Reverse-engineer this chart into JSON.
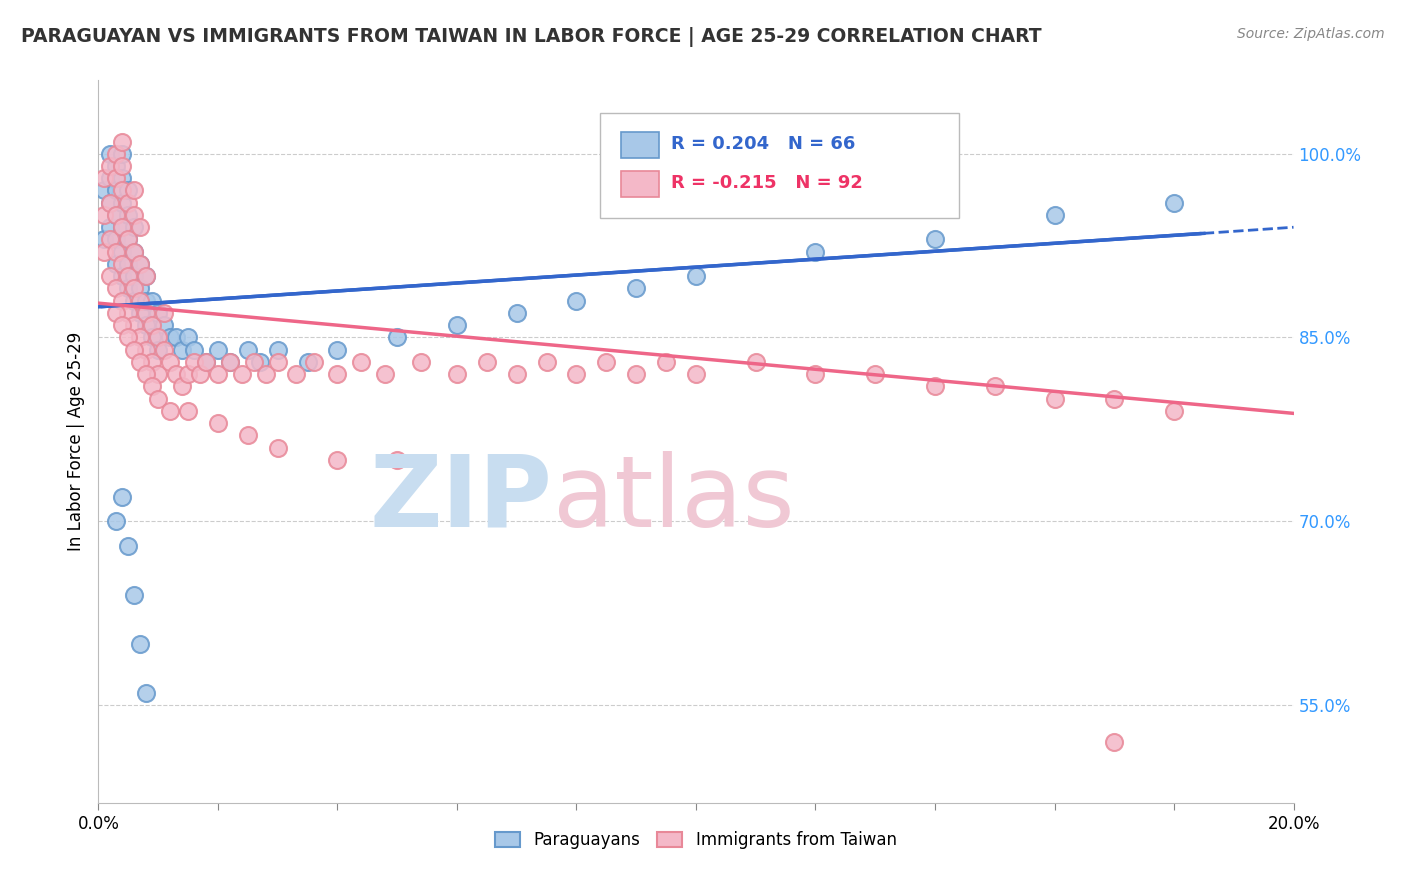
{
  "title": "PARAGUAYAN VS IMMIGRANTS FROM TAIWAN IN LABOR FORCE | AGE 25-29 CORRELATION CHART",
  "source": "Source: ZipAtlas.com",
  "ylabel": "In Labor Force | Age 25-29",
  "yticks": [
    0.55,
    0.7,
    0.85,
    1.0
  ],
  "ytick_labels": [
    "55.0%",
    "70.0%",
    "85.0%",
    "100.0%"
  ],
  "xlim": [
    0.0,
    0.2
  ],
  "ylim": [
    0.47,
    1.06
  ],
  "legend_r_blue": "R = 0.204",
  "legend_n_blue": "N = 66",
  "legend_r_pink": "R = -0.215",
  "legend_n_pink": "N = 92",
  "blue_color": "#A8C8E8",
  "blue_edge": "#6699CC",
  "pink_color": "#F4B8C8",
  "pink_edge": "#E88898",
  "trend_blue_color": "#3366CC",
  "trend_pink_color": "#EE6688",
  "watermark_ZIP": "#C8DDF0",
  "watermark_atlas": "#F0C8D4",
  "blue_x": [
    0.001,
    0.001,
    0.002,
    0.002,
    0.002,
    0.002,
    0.003,
    0.003,
    0.003,
    0.003,
    0.003,
    0.004,
    0.004,
    0.004,
    0.004,
    0.004,
    0.004,
    0.005,
    0.005,
    0.005,
    0.005,
    0.005,
    0.006,
    0.006,
    0.006,
    0.006,
    0.007,
    0.007,
    0.007,
    0.008,
    0.008,
    0.008,
    0.009,
    0.009,
    0.01,
    0.01,
    0.011,
    0.012,
    0.013,
    0.014,
    0.015,
    0.016,
    0.018,
    0.02,
    0.022,
    0.025,
    0.027,
    0.03,
    0.035,
    0.04,
    0.05,
    0.06,
    0.07,
    0.08,
    0.09,
    0.1,
    0.12,
    0.14,
    0.16,
    0.18,
    0.003,
    0.004,
    0.005,
    0.006,
    0.007,
    0.008
  ],
  "blue_y": [
    0.93,
    0.97,
    0.94,
    0.96,
    0.98,
    1.0,
    0.91,
    0.93,
    0.95,
    0.97,
    0.99,
    0.9,
    0.92,
    0.94,
    0.96,
    0.98,
    1.0,
    0.89,
    0.91,
    0.93,
    0.95,
    0.97,
    0.88,
    0.9,
    0.92,
    0.94,
    0.87,
    0.89,
    0.91,
    0.86,
    0.88,
    0.9,
    0.85,
    0.88,
    0.84,
    0.87,
    0.86,
    0.85,
    0.85,
    0.84,
    0.85,
    0.84,
    0.83,
    0.84,
    0.83,
    0.84,
    0.83,
    0.84,
    0.83,
    0.84,
    0.85,
    0.86,
    0.87,
    0.88,
    0.89,
    0.9,
    0.92,
    0.93,
    0.95,
    0.96,
    0.7,
    0.72,
    0.68,
    0.64,
    0.6,
    0.56
  ],
  "pink_x": [
    0.001,
    0.001,
    0.001,
    0.002,
    0.002,
    0.002,
    0.002,
    0.003,
    0.003,
    0.003,
    0.003,
    0.003,
    0.004,
    0.004,
    0.004,
    0.004,
    0.004,
    0.004,
    0.005,
    0.005,
    0.005,
    0.005,
    0.006,
    0.006,
    0.006,
    0.006,
    0.006,
    0.007,
    0.007,
    0.007,
    0.007,
    0.008,
    0.008,
    0.008,
    0.009,
    0.009,
    0.01,
    0.01,
    0.011,
    0.011,
    0.012,
    0.013,
    0.014,
    0.015,
    0.016,
    0.017,
    0.018,
    0.02,
    0.022,
    0.024,
    0.026,
    0.028,
    0.03,
    0.033,
    0.036,
    0.04,
    0.044,
    0.048,
    0.054,
    0.06,
    0.065,
    0.07,
    0.075,
    0.08,
    0.085,
    0.09,
    0.095,
    0.1,
    0.11,
    0.12,
    0.13,
    0.14,
    0.15,
    0.16,
    0.17,
    0.003,
    0.004,
    0.005,
    0.006,
    0.007,
    0.008,
    0.009,
    0.01,
    0.012,
    0.015,
    0.02,
    0.025,
    0.03,
    0.04,
    0.05,
    0.17,
    0.18
  ],
  "pink_y": [
    0.92,
    0.95,
    0.98,
    0.9,
    0.93,
    0.96,
    0.99,
    0.89,
    0.92,
    0.95,
    0.98,
    1.0,
    0.88,
    0.91,
    0.94,
    0.97,
    0.99,
    1.01,
    0.87,
    0.9,
    0.93,
    0.96,
    0.86,
    0.89,
    0.92,
    0.95,
    0.97,
    0.85,
    0.88,
    0.91,
    0.94,
    0.84,
    0.87,
    0.9,
    0.83,
    0.86,
    0.82,
    0.85,
    0.84,
    0.87,
    0.83,
    0.82,
    0.81,
    0.82,
    0.83,
    0.82,
    0.83,
    0.82,
    0.83,
    0.82,
    0.83,
    0.82,
    0.83,
    0.82,
    0.83,
    0.82,
    0.83,
    0.82,
    0.83,
    0.82,
    0.83,
    0.82,
    0.83,
    0.82,
    0.83,
    0.82,
    0.83,
    0.82,
    0.83,
    0.82,
    0.82,
    0.81,
    0.81,
    0.8,
    0.8,
    0.87,
    0.86,
    0.85,
    0.84,
    0.83,
    0.82,
    0.81,
    0.8,
    0.79,
    0.79,
    0.78,
    0.77,
    0.76,
    0.75,
    0.75,
    0.52,
    0.79
  ],
  "trend_blue_x0": 0.0,
  "trend_blue_y0": 0.875,
  "trend_blue_x1": 0.185,
  "trend_blue_y1": 0.935,
  "trend_blue_dash_x0": 0.185,
  "trend_blue_dash_y0": 0.935,
  "trend_blue_dash_x1": 0.2,
  "trend_blue_dash_y1": 0.94,
  "trend_pink_x0": 0.0,
  "trend_pink_y0": 0.878,
  "trend_pink_x1": 0.2,
  "trend_pink_y1": 0.788
}
